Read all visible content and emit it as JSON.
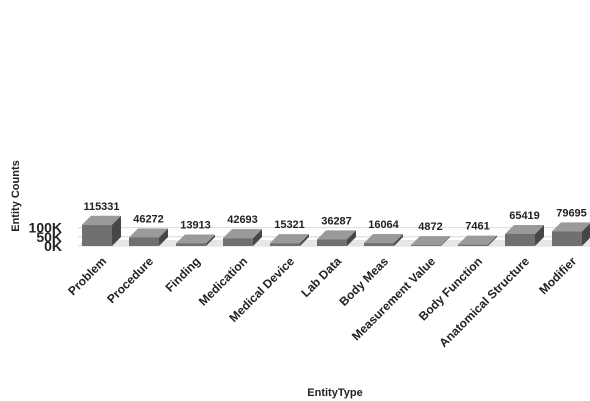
{
  "chart_data": {
    "type": "bar",
    "categories": [
      "Problem",
      "Procedure",
      "Finding",
      "Medication",
      "Medical Device",
      "Lab Data",
      "Body Meas",
      "Measurement Value",
      "Body Function",
      "Anatomical Structure",
      "Modifier"
    ],
    "values": [
      115331,
      46272,
      13913,
      42693,
      15321,
      36287,
      16064,
      4872,
      7461,
      65419,
      79695
    ],
    "xlabel": "EntityType",
    "ylabel": "Entity Counts",
    "ylim": [
      0,
      120000
    ],
    "yticks": [
      {
        "value": 0,
        "label": "0K"
      },
      {
        "value": 50000,
        "label": "50K"
      },
      {
        "value": 100000,
        "label": "100K"
      }
    ],
    "grid": true,
    "bar_front_color": "#707070",
    "bar_side_color": "#474747",
    "bar_top_color": "#9a9a9a"
  }
}
